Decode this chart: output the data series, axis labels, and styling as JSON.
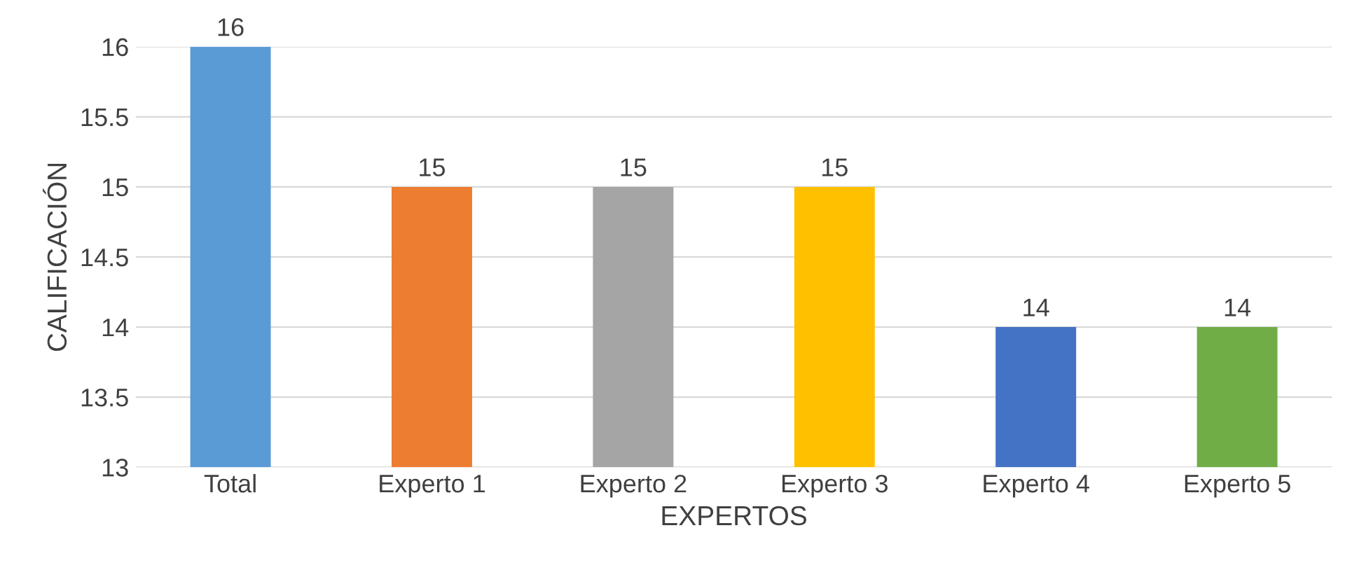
{
  "chart_data": {
    "type": "bar",
    "xlabel": "EXPERTOS",
    "ylabel": "CALIFICACIÓN",
    "categories": [
      "Total",
      "Experto 1",
      "Experto 2",
      "Experto 3",
      "Experto 4",
      "Experto 5"
    ],
    "values": [
      16,
      15,
      15,
      15,
      14,
      14
    ],
    "colors": [
      "#5b9bd5",
      "#ed7d31",
      "#a5a5a5",
      "#ffc000",
      "#4472c4",
      "#70ad47"
    ],
    "ylim": [
      13,
      16
    ],
    "yticks": [
      13,
      13.5,
      14,
      14.5,
      15,
      15.5,
      16
    ],
    "grid": "y",
    "data_labels": true
  }
}
